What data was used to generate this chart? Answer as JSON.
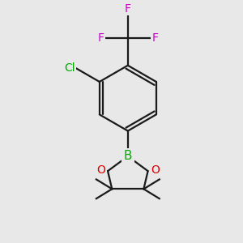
{
  "background_color": "#e8e8e8",
  "bond_color": "#1a1a1a",
  "B_color": "#00aa00",
  "O_color": "#dd0000",
  "Cl_color": "#00aa00",
  "F_color": "#cc00cc",
  "figsize": [
    3.0,
    3.0
  ],
  "dpi": 100,
  "xlim": [
    -1.5,
    1.5
  ],
  "ylim": [
    -1.85,
    2.5
  ]
}
